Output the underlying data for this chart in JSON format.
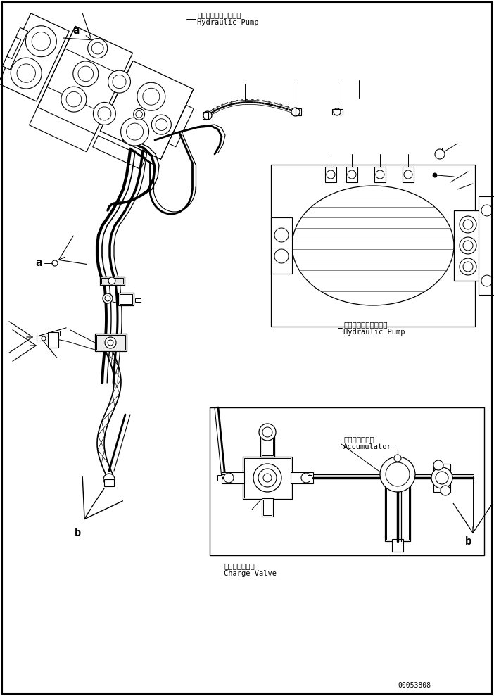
{
  "background_color": "#ffffff",
  "figsize": [
    7.02,
    9.89
  ],
  "dpi": 100,
  "part_number": "00053808",
  "labels": {
    "hydraulic_pump_top_jp": "ハイドロリックポンプ",
    "hydraulic_pump_top_en": "Hydraulic Pump",
    "hydraulic_pump_right_jp": "ハイドロリックポンプ",
    "hydraulic_pump_right_en": "Hydraulic Pump",
    "accumulator_jp": "アキュムレータ",
    "accumulator_en": "Accumulator",
    "charge_valve_jp": "チャージバルブ",
    "charge_valve_en": "Charge Valve",
    "label_a_top": "a",
    "label_a_mid": "a",
    "label_b_left": "b",
    "label_b_right": "b"
  }
}
